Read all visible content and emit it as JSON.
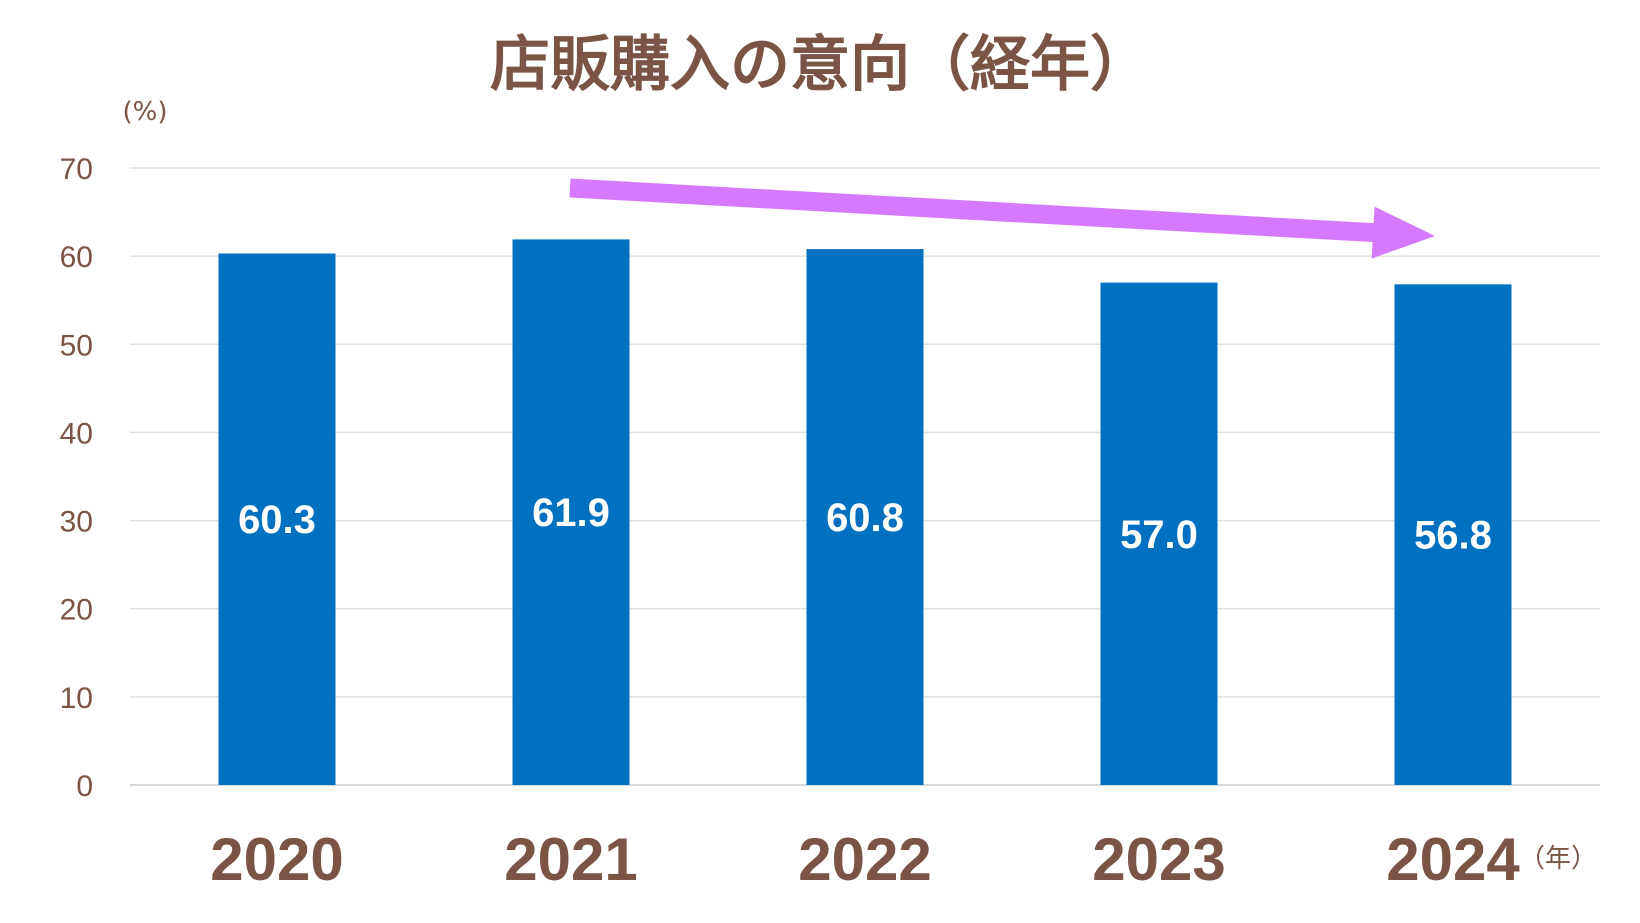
{
  "chart_data": {
    "type": "bar",
    "title": "店販購入の意向（経年）",
    "ylabel": "(%)",
    "xlabel": "（年）",
    "categories": [
      "2020",
      "2021",
      "2022",
      "2023",
      "2024"
    ],
    "values": [
      60.3,
      61.9,
      60.8,
      57.0,
      56.8
    ],
    "value_labels": [
      "60.3",
      "61.9",
      "60.8",
      "57.0",
      "56.8"
    ],
    "ylim": [
      0,
      70
    ],
    "yticks": [
      0,
      10,
      20,
      30,
      40,
      50,
      60,
      70
    ],
    "grid": true,
    "bar_color": "#0070c0",
    "annotation": {
      "type": "trend-arrow",
      "direction": "down-right",
      "color": "#d57aff"
    }
  },
  "colors": {
    "text": "#7b5446",
    "bar": "#0070c0",
    "arrow": "#d57aff",
    "grid": "#e6e0dc"
  }
}
